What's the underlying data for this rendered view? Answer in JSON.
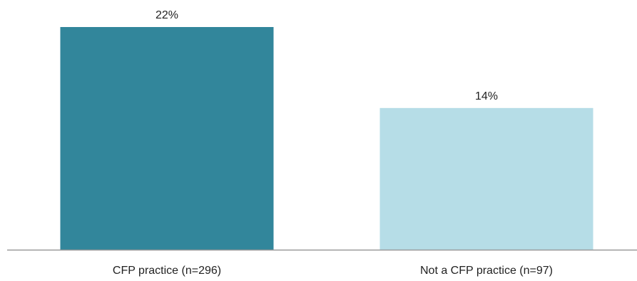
{
  "chart_data": {
    "type": "bar",
    "categories": [
      "CFP practice (n=296)",
      "Not a CFP practice (n=97)"
    ],
    "values": [
      22,
      14
    ],
    "value_labels": [
      "22%",
      "14%"
    ],
    "unit": "%",
    "ylim": [
      0,
      24
    ],
    "colors": [
      "#32869b",
      "#b6dde7"
    ],
    "title": "",
    "xlabel": "",
    "ylabel": "",
    "grid": false,
    "legend": "none"
  }
}
